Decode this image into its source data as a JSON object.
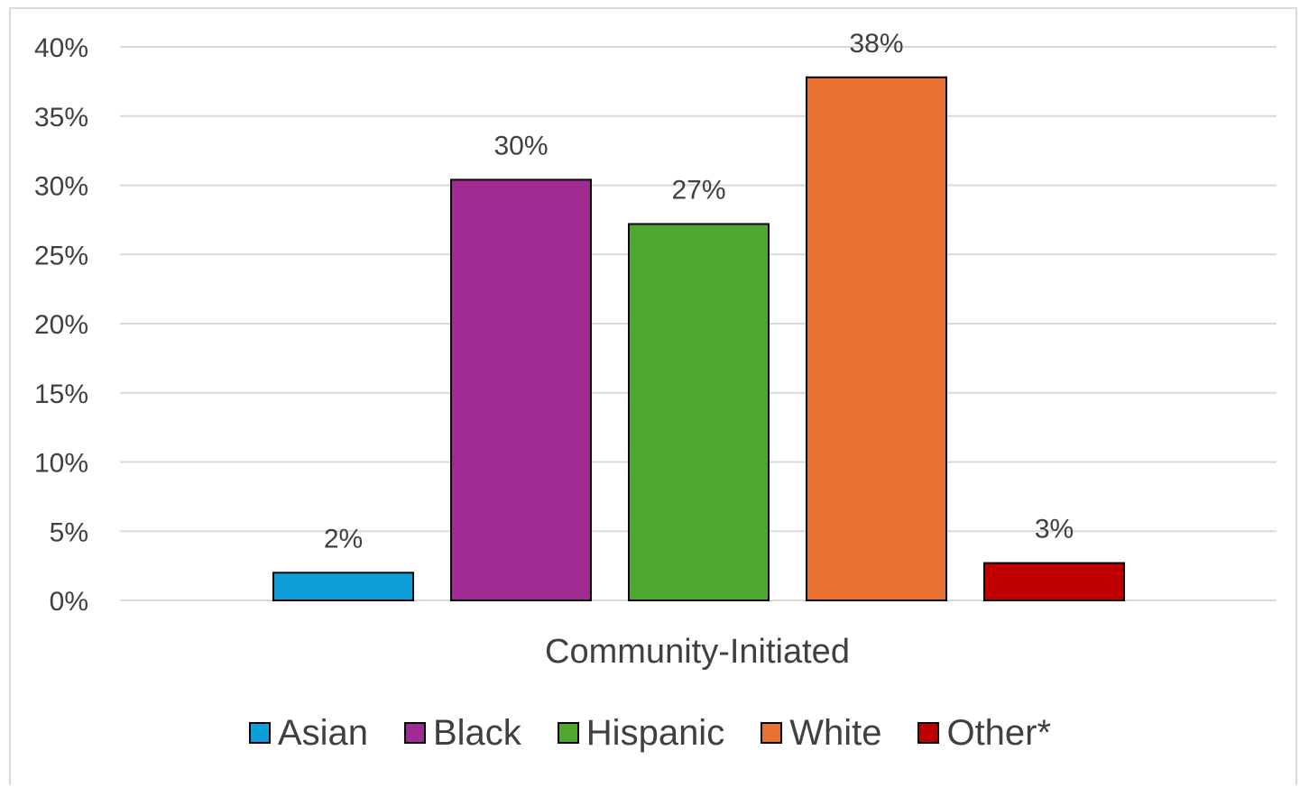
{
  "chart_data": {
    "type": "bar",
    "title": "",
    "xlabel": "",
    "ylabel": "",
    "categories": [
      "Community-Initiated"
    ],
    "ylim": [
      0,
      40
    ],
    "yticks": [
      "0%",
      "5%",
      "10%",
      "15%",
      "20%",
      "25%",
      "30%",
      "35%",
      "40%"
    ],
    "grid": true,
    "legend_position": "bottom",
    "series": [
      {
        "name": "Asian",
        "values": [
          2
        ],
        "label": "2%",
        "color": "#0e9fd8"
      },
      {
        "name": "Black",
        "values": [
          30.4
        ],
        "label": "30%",
        "color": "#a02b93"
      },
      {
        "name": "Hispanic",
        "values": [
          27.2
        ],
        "label": "27%",
        "color": "#4ea72e"
      },
      {
        "name": "White",
        "values": [
          37.8
        ],
        "label": "38%",
        "color": "#e97132"
      },
      {
        "name": "Other*",
        "values": [
          2.7
        ],
        "label": "3%",
        "color": "#c00000"
      }
    ]
  }
}
